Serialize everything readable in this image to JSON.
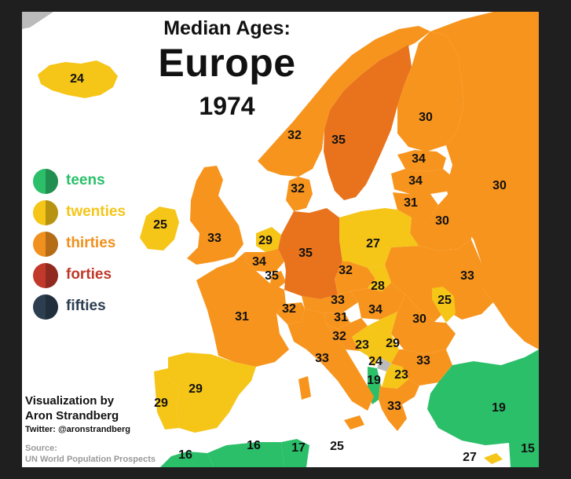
{
  "title": {
    "line1": "Median Ages:",
    "line2": "Europe",
    "line3": "1974"
  },
  "legend": [
    {
      "label": "teens",
      "color": "#2bbf6a"
    },
    {
      "label": "twenties",
      "color": "#f5c518"
    },
    {
      "label": "thirties",
      "color": "#f0901e"
    },
    {
      "label": "forties",
      "color": "#c0392b"
    },
    {
      "label": "fifties",
      "color": "#2c3e50"
    }
  ],
  "credits": {
    "line1": "Visualization by",
    "line2": "Aron Strandberg",
    "twitter": "Twitter: @aronstrandberg",
    "source_label": "Source:",
    "source": "UN World Population Prospects"
  },
  "colors": {
    "teens": "#2bbf6a",
    "twenties": "#f5c518",
    "thirties": "#f7941d",
    "thirties_dark": "#e8731c",
    "border": "#ffffff",
    "no_data": "#bbbbbb",
    "background": "#ffffff",
    "frame": "#1f1f1f"
  },
  "regions": [
    {
      "name": "Iceland",
      "age": "24"
    },
    {
      "name": "Norway",
      "age": "32"
    },
    {
      "name": "Sweden",
      "age": "35"
    },
    {
      "name": "Finland",
      "age": "30"
    },
    {
      "name": "Estonia",
      "age": "34"
    },
    {
      "name": "Latvia",
      "age": "34"
    },
    {
      "name": "Lithuania",
      "age": "31"
    },
    {
      "name": "Russia",
      "age": "30"
    },
    {
      "name": "Belarus",
      "age": "30"
    },
    {
      "name": "Ukraine",
      "age": "33"
    },
    {
      "name": "Moldova",
      "age": "25"
    },
    {
      "name": "Ireland",
      "age": "25"
    },
    {
      "name": "United Kingdom",
      "age": "33"
    },
    {
      "name": "Denmark",
      "age": "32"
    },
    {
      "name": "Netherlands",
      "age": "29"
    },
    {
      "name": "Belgium",
      "age": "34"
    },
    {
      "name": "Luxembourg",
      "age": "35"
    },
    {
      "name": "Germany",
      "age": "35"
    },
    {
      "name": "Poland",
      "age": "27"
    },
    {
      "name": "Czechoslovakia",
      "age": "32"
    },
    {
      "name": "Slovakia",
      "age": "28"
    },
    {
      "name": "Austria",
      "age": "33"
    },
    {
      "name": "Hungary",
      "age": "34"
    },
    {
      "name": "Romania",
      "age": "30"
    },
    {
      "name": "France",
      "age": "31"
    },
    {
      "name": "Switzerland",
      "age": "32"
    },
    {
      "name": "Slovenia",
      "age": "31"
    },
    {
      "name": "Croatia",
      "age": "32"
    },
    {
      "name": "Bosnia",
      "age": "23"
    },
    {
      "name": "Serbia",
      "age": "29"
    },
    {
      "name": "Montenegro",
      "age": "24"
    },
    {
      "name": "Albania",
      "age": "19"
    },
    {
      "name": "Macedonia",
      "age": "23"
    },
    {
      "name": "Bulgaria",
      "age": "33"
    },
    {
      "name": "Italy",
      "age": "33"
    },
    {
      "name": "Greece",
      "age": "33"
    },
    {
      "name": "Turkey",
      "age": "19"
    },
    {
      "name": "Spain",
      "age": "29"
    },
    {
      "name": "Portugal",
      "age": "29"
    },
    {
      "name": "Morocco",
      "age": "16"
    },
    {
      "name": "Algeria",
      "age": "16"
    },
    {
      "name": "Tunisia",
      "age": "17"
    },
    {
      "name": "Malta",
      "age": "25"
    },
    {
      "name": "Cyprus",
      "age": "27"
    },
    {
      "name": "Syria",
      "age": "15"
    }
  ]
}
